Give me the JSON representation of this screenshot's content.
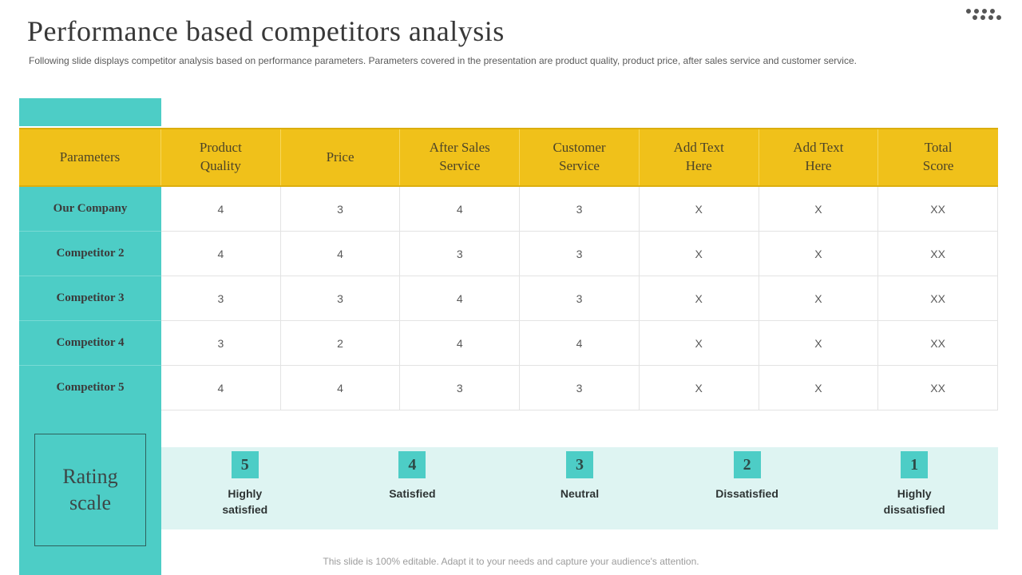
{
  "header": {
    "title": "Performance based competitors analysis",
    "subtitle": "Following slide displays competitor analysis based on performance parameters. Parameters covered in the presentation are product quality, product price, after sales service and customer service."
  },
  "table": {
    "columns": [
      "Parameters",
      "Product\nQuality",
      "Price",
      "After Sales\nService",
      "Customer\nService",
      "Add Text\nHere",
      "Add Text\nHere",
      "Total\nScore"
    ],
    "rows": [
      {
        "label": "Our Company",
        "values": [
          "4",
          "3",
          "4",
          "3",
          "X",
          "X",
          "XX"
        ]
      },
      {
        "label": "Competitor 2",
        "values": [
          "4",
          "4",
          "3",
          "3",
          "X",
          "X",
          "XX"
        ]
      },
      {
        "label": "Competitor 3",
        "values": [
          "3",
          "3",
          "4",
          "3",
          "X",
          "X",
          "XX"
        ]
      },
      {
        "label": "Competitor 4",
        "values": [
          "3",
          "2",
          "4",
          "4",
          "X",
          "X",
          "XX"
        ]
      },
      {
        "label": "Competitor 5",
        "values": [
          "4",
          "4",
          "3",
          "3",
          "X",
          "X",
          "XX"
        ]
      }
    ]
  },
  "rating": {
    "panel_label": "Rating scale",
    "items": [
      {
        "score": "5",
        "label": "Highly\nsatisfied"
      },
      {
        "score": "4",
        "label": "Satisfied"
      },
      {
        "score": "3",
        "label": "Neutral"
      },
      {
        "score": "2",
        "label": "Dissatisfied"
      },
      {
        "score": "1",
        "label": "Highly\ndissatisfied"
      }
    ]
  },
  "footer": {
    "note": "This slide is 100% editable. Adapt it to your needs and capture your audience's attention."
  },
  "colors": {
    "teal": "#4DCDC6",
    "teal_light": "#DEF4F2",
    "yellow": "#F0C11A",
    "text_dark": "#3B3B3B",
    "text_gray": "#595959"
  }
}
